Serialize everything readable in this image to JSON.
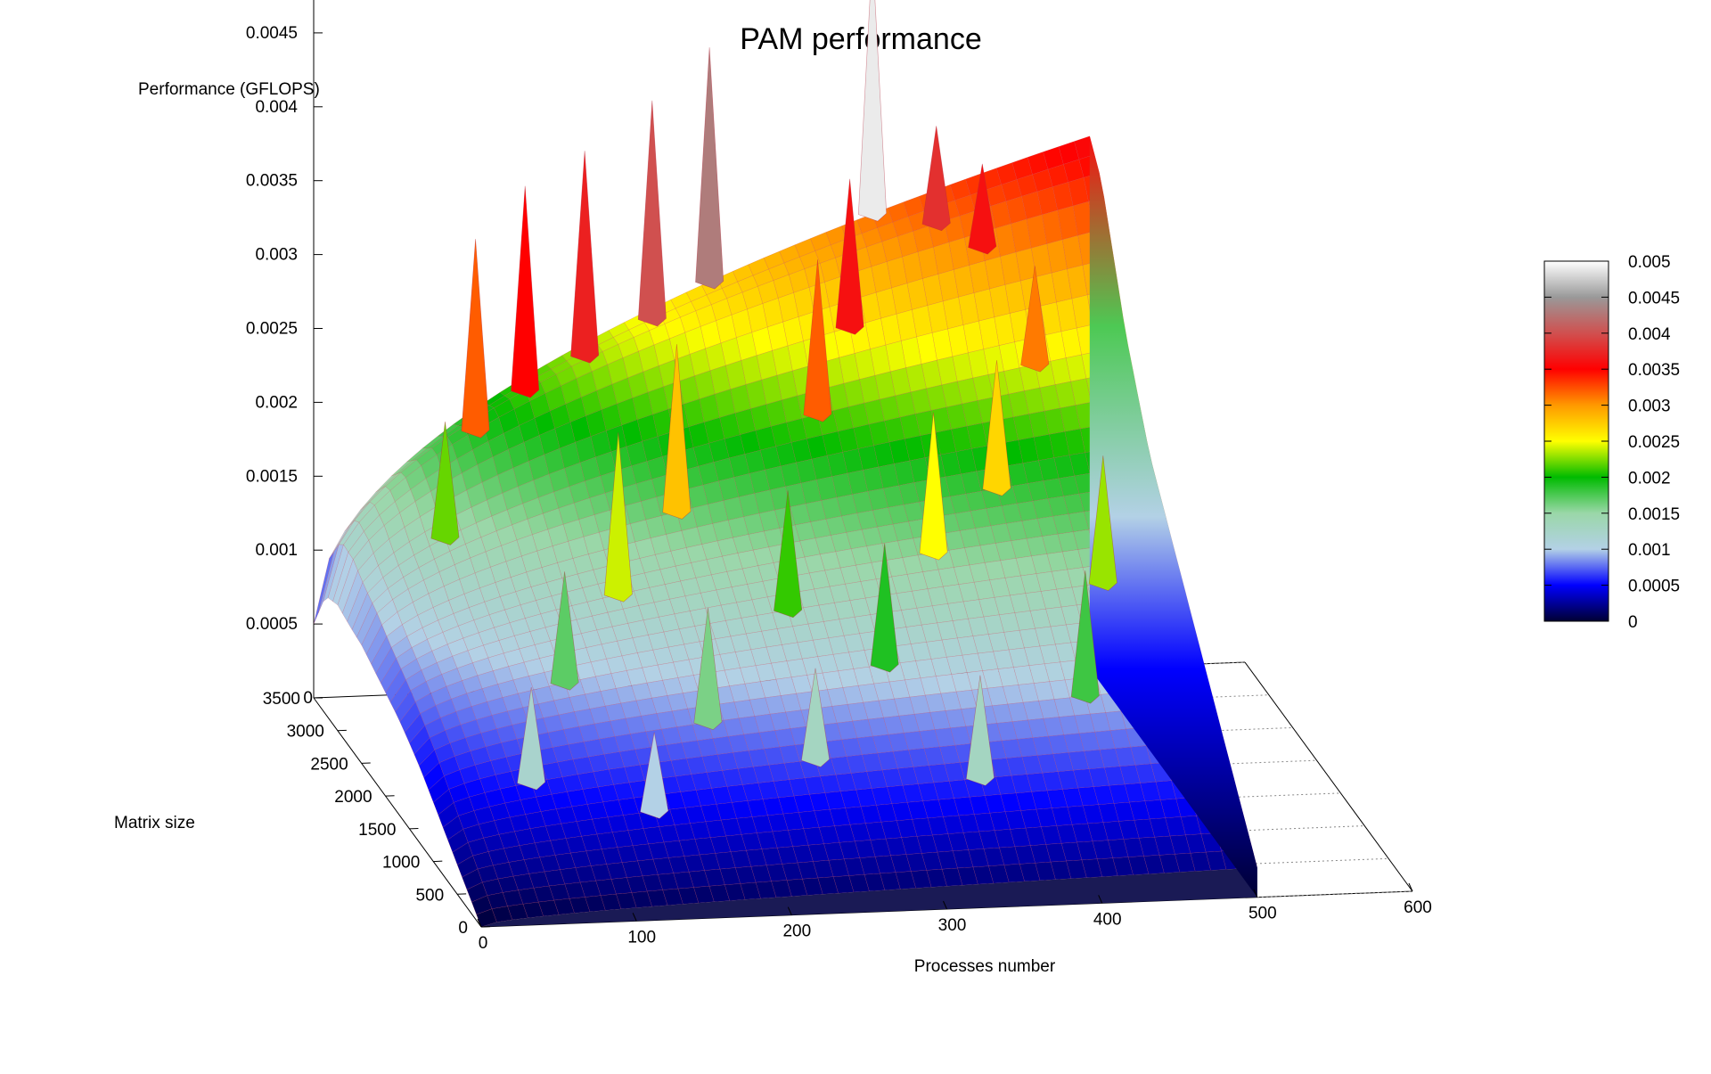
{
  "chart_data": {
    "type": "surface3d",
    "title": "PAM performance",
    "xlabel": "Processes number",
    "ylabel": "Matrix size",
    "zlabel": "Performance (GFLOPS)",
    "xlim": [
      0,
      600
    ],
    "ylim": [
      0,
      3500
    ],
    "zlim": [
      0,
      0.005
    ],
    "data_x_range": [
      0,
      500
    ],
    "x_ticks": [
      "0",
      "100",
      "200",
      "300",
      "400",
      "500",
      "600"
    ],
    "y_ticks": [
      "0",
      "500",
      "1000",
      "1500",
      "2000",
      "2500",
      "3000",
      "3500"
    ],
    "z_ticks": [
      "0",
      "0.0005",
      "0.001",
      "0.0015",
      "0.002",
      "0.0025",
      "0.003",
      "0.0035",
      "0.004",
      "0.0045",
      "0.005"
    ],
    "colorbar": {
      "range": [
        0,
        0.005
      ],
      "ticks": [
        "0",
        "0.0005",
        "0.001",
        "0.0015",
        "0.002",
        "0.0025",
        "0.003",
        "0.0035",
        "0.004",
        "0.0045",
        "0.005"
      ],
      "palette": [
        [
          0,
          "#000033"
        ],
        [
          0.1,
          "#0000ff"
        ],
        [
          0.2,
          "#b3d1e6"
        ],
        [
          0.3,
          "#9ad7a8"
        ],
        [
          0.4,
          "#00bb00"
        ],
        [
          0.5,
          "#ffff00"
        ],
        [
          0.6,
          "#ff9900"
        ],
        [
          0.7,
          "#ff0000"
        ],
        [
          0.8,
          "#d0504f"
        ],
        [
          0.9,
          "#999999"
        ],
        [
          1.0,
          "#ffffff"
        ]
      ]
    },
    "surface_profile": {
      "matrix_size_rows": [
        0,
        250,
        500,
        750,
        1000,
        1250,
        1500,
        1750,
        2000,
        2250,
        2500,
        2750,
        3000,
        3250,
        3500
      ],
      "perf_at_0_processes": [
        0,
        0.0001,
        0.0002,
        0.0003,
        0.0004,
        0.0005,
        0.00058,
        0.00065,
        0.0007,
        0.00075,
        0.0008,
        0.00082,
        0.00085,
        0.0008,
        0.0005
      ],
      "perf_at_500_processes": [
        0.0002,
        0.0004,
        0.0006,
        0.0008,
        0.001,
        0.0012,
        0.0014,
        0.0016,
        0.0018,
        0.002,
        0.0023,
        0.0026,
        0.003,
        0.0034,
        0.0036
      ]
    },
    "spikes": [
      {
        "processes": 360,
        "matrix_size": 3500,
        "value": 0.0049
      },
      {
        "processes": 255,
        "matrix_size": 3500,
        "value": 0.0043
      },
      {
        "processes": 215,
        "matrix_size": 3400,
        "value": 0.004
      },
      {
        "processes": 170,
        "matrix_size": 3350,
        "value": 0.0037
      },
      {
        "processes": 130,
        "matrix_size": 3300,
        "value": 0.0035
      },
      {
        "processes": 395,
        "matrix_size": 3300,
        "value": 0.0038
      },
      {
        "processes": 420,
        "matrix_size": 3150,
        "value": 0.0036
      },
      {
        "processes": 330,
        "matrix_size": 3000,
        "value": 0.0036
      },
      {
        "processes": 95,
        "matrix_size": 3200,
        "value": 0.0032
      },
      {
        "processes": 60,
        "matrix_size": 2700,
        "value": 0.0022
      },
      {
        "processes": 300,
        "matrix_size": 2700,
        "value": 0.0032
      },
      {
        "processes": 440,
        "matrix_size": 2700,
        "value": 0.0031
      },
      {
        "processes": 200,
        "matrix_size": 2400,
        "value": 0.0028
      },
      {
        "processes": 400,
        "matrix_size": 2200,
        "value": 0.0027
      },
      {
        "processes": 150,
        "matrix_size": 2000,
        "value": 0.0024
      },
      {
        "processes": 350,
        "matrix_size": 1900,
        "value": 0.0025
      },
      {
        "processes": 250,
        "matrix_size": 1700,
        "value": 0.0021
      },
      {
        "processes": 100,
        "matrix_size": 1500,
        "value": 0.0017
      },
      {
        "processes": 450,
        "matrix_size": 1600,
        "value": 0.0023
      },
      {
        "processes": 300,
        "matrix_size": 1300,
        "value": 0.0019
      },
      {
        "processes": 180,
        "matrix_size": 1100,
        "value": 0.0016
      },
      {
        "processes": 60,
        "matrix_size": 900,
        "value": 0.0012
      },
      {
        "processes": 420,
        "matrix_size": 1000,
        "value": 0.0018
      },
      {
        "processes": 240,
        "matrix_size": 800,
        "value": 0.0013
      },
      {
        "processes": 130,
        "matrix_size": 600,
        "value": 0.001
      },
      {
        "processes": 340,
        "matrix_size": 600,
        "value": 0.0013
      }
    ]
  }
}
